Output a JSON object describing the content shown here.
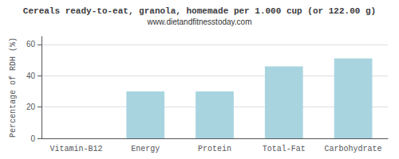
{
  "chart_data": {
    "type": "bar",
    "title": "Cereals ready-to-eat, granola, homemade per 1.000 cup (or 122.00 g)",
    "subtitle": "www.dietandfitnesstoday.com",
    "categories": [
      "Vitamin-B12",
      "Energy",
      "Protein",
      "Total-Fat",
      "Carbohydrate"
    ],
    "values": [
      0,
      30,
      30,
      46,
      51
    ],
    "color": "#a8d4e0",
    "ylabel": "Percentage of RDH (%)",
    "ylim": [
      0,
      65
    ],
    "yticks": [
      0,
      20,
      40,
      60
    ],
    "grid": true
  }
}
